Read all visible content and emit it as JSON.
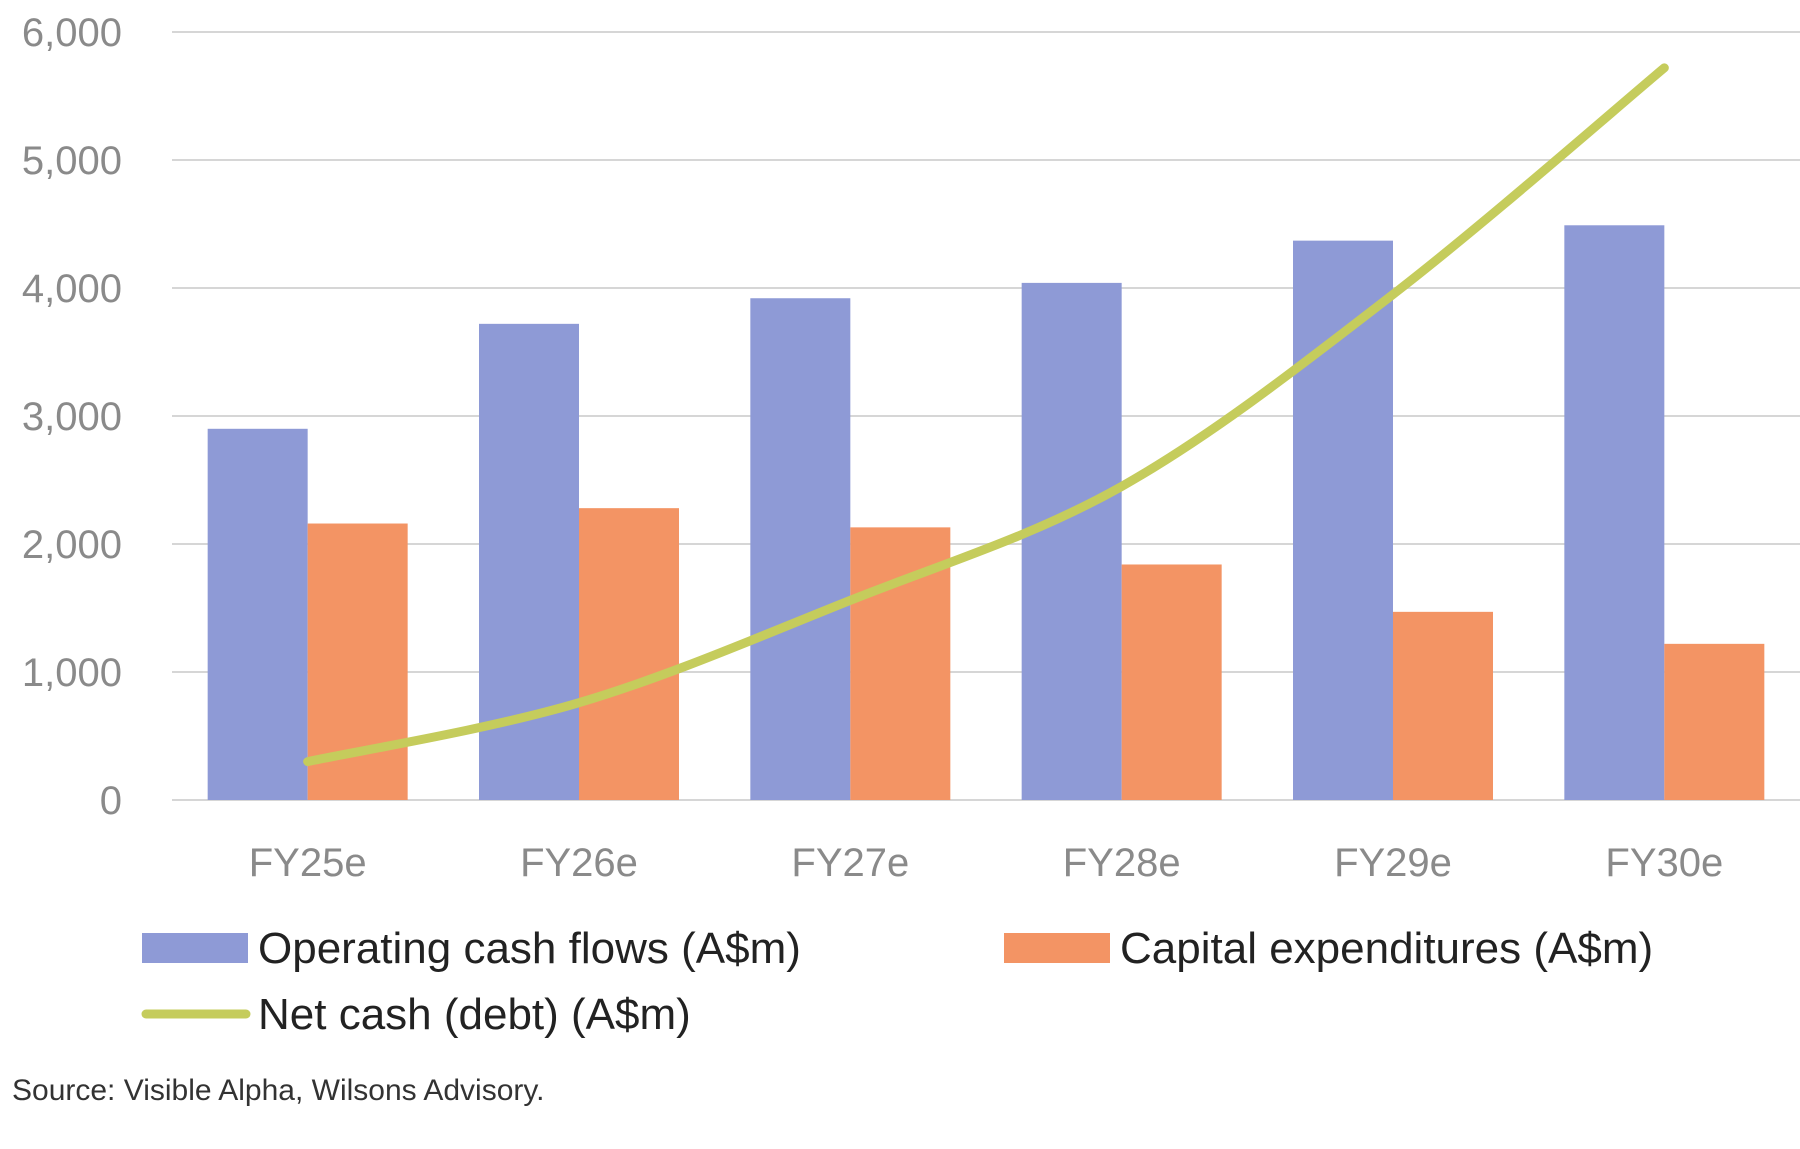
{
  "chart_data": {
    "type": "bar",
    "categories": [
      "FY25e",
      "FY26e",
      "FY27e",
      "FY28e",
      "FY29e",
      "FY30e"
    ],
    "series": [
      {
        "name": "Operating cash flows (A$m)",
        "kind": "bar",
        "color": "#8e9ad6",
        "values": [
          2900,
          3720,
          3920,
          4040,
          4370,
          4490
        ]
      },
      {
        "name": "Capital expenditures (A$m)",
        "kind": "bar",
        "color": "#f39464",
        "values": [
          2160,
          2280,
          2130,
          1840,
          1470,
          1220
        ]
      },
      {
        "name": "Net cash (debt) (A$m)",
        "kind": "line",
        "color": "#c5cc5c",
        "values": [
          300,
          760,
          1560,
          2450,
          3950,
          5720
        ]
      }
    ],
    "ylim": [
      0,
      6000
    ],
    "yticks": [
      "0",
      "1,000",
      "2,000",
      "3,000",
      "4,000",
      "5,000",
      "6,000"
    ],
    "ytick_values": [
      0,
      1000,
      2000,
      3000,
      4000,
      5000,
      6000
    ],
    "grid": true,
    "legend_position": "bottom",
    "title": "",
    "xlabel": "",
    "ylabel": ""
  },
  "source": "Source: Visible Alpha, Wilsons Advisory."
}
